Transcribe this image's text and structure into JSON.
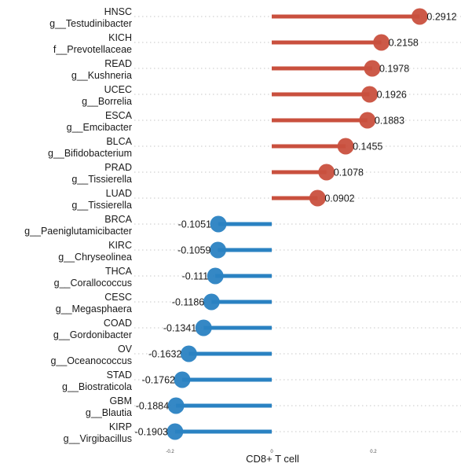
{
  "chart_data": {
    "type": "lollipop",
    "xlabel": "CD8+ T cell",
    "xlim": [
      -0.3,
      0.3
    ],
    "xticks": [
      -0.2,
      0,
      0.2
    ],
    "xtick_labels": [
      "-0.2",
      "0",
      "0.2"
    ],
    "grid": "horizontal dotted",
    "colors": {
      "positive": "#c9503e",
      "negative": "#2a82c2"
    },
    "rows": [
      {
        "cancer": "HNSC",
        "taxon": "g__Testudinibacter",
        "value": 0.2912,
        "label": "0.2912"
      },
      {
        "cancer": "KICH",
        "taxon": "f__Prevotellaceae",
        "value": 0.2158,
        "label": "0.2158"
      },
      {
        "cancer": "READ",
        "taxon": "g__Kushneria",
        "value": 0.1978,
        "label": "0.1978"
      },
      {
        "cancer": "UCEC",
        "taxon": "g__Borrelia",
        "value": 0.1926,
        "label": "0.1926"
      },
      {
        "cancer": "ESCA",
        "taxon": "g__Emcibacter",
        "value": 0.1883,
        "label": "0.1883"
      },
      {
        "cancer": "BLCA",
        "taxon": "g__Bifidobacterium",
        "value": 0.1455,
        "label": "0.1455"
      },
      {
        "cancer": "PRAD",
        "taxon": "g__Tissierella",
        "value": 0.1078,
        "label": "0.1078"
      },
      {
        "cancer": "LUAD",
        "taxon": "g__Tissierella",
        "value": 0.0902,
        "label": "0.0902"
      },
      {
        "cancer": "BRCA",
        "taxon": "g__Paeniglutamicibacter",
        "value": -0.1051,
        "label": "-0.1051"
      },
      {
        "cancer": "KIRC",
        "taxon": "g__Chryseolinea",
        "value": -0.1059,
        "label": "-0.1059"
      },
      {
        "cancer": "THCA",
        "taxon": "g__Corallococcus",
        "value": -0.111,
        "label": "-0.111"
      },
      {
        "cancer": "CESC",
        "taxon": "g__Megasphaera",
        "value": -0.1186,
        "label": "-0.1186"
      },
      {
        "cancer": "COAD",
        "taxon": "g__Gordonibacter",
        "value": -0.1341,
        "label": "-0.1341"
      },
      {
        "cancer": "OV",
        "taxon": "g__Oceanococcus",
        "value": -0.1632,
        "label": "-0.1632"
      },
      {
        "cancer": "STAD",
        "taxon": "g__Biostraticola",
        "value": -0.1762,
        "label": "-0.1762"
      },
      {
        "cancer": "GBM",
        "taxon": "g__Blautia",
        "value": -0.1884,
        "label": "-0.1884"
      },
      {
        "cancer": "KIRP",
        "taxon": "g__Virgibacillus",
        "value": -0.1903,
        "label": "-0.1903"
      }
    ]
  }
}
